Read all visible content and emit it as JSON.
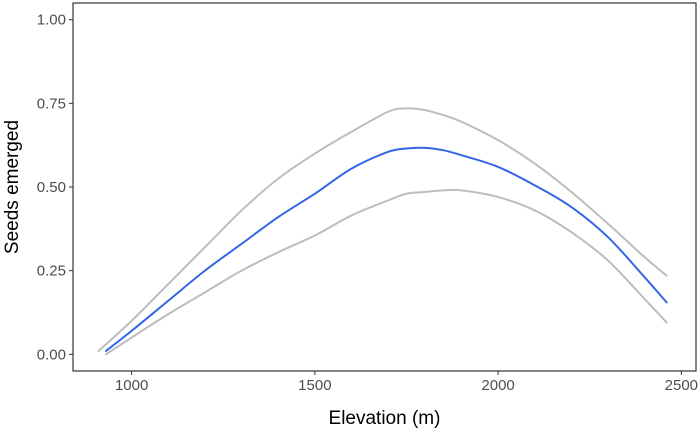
{
  "chart_data": {
    "type": "line",
    "xlabel": "Elevation (m)",
    "ylabel": "Seeds emerged",
    "xlim": [
      840,
      2540
    ],
    "ylim": [
      -0.05,
      1.05
    ],
    "x_ticks": [
      1000,
      1500,
      2000,
      2500
    ],
    "x_tick_labels": [
      "1000",
      "1500",
      "2000",
      "2500"
    ],
    "y_ticks": [
      0.0,
      0.25,
      0.5,
      0.75,
      1.0
    ],
    "y_tick_labels": [
      "0.00",
      "0.25",
      "0.50",
      "0.75",
      "1.00"
    ],
    "grid": false,
    "colors": {
      "fit": "#3366e6",
      "band": "#bdbdbd",
      "frame": "#333333"
    },
    "series": [
      {
        "role": "fit",
        "x": [
          930,
          1000,
          1100,
          1200,
          1300,
          1400,
          1500,
          1600,
          1700,
          1750,
          1800,
          1850,
          1900,
          2000,
          2100,
          2200,
          2300,
          2400,
          2460
        ],
        "values": [
          0.01,
          0.07,
          0.16,
          0.25,
          0.33,
          0.41,
          0.48,
          0.555,
          0.605,
          0.615,
          0.617,
          0.61,
          0.595,
          0.56,
          0.505,
          0.44,
          0.35,
          0.23,
          0.155
        ]
      },
      {
        "role": "upper",
        "x": [
          910,
          1000,
          1100,
          1200,
          1300,
          1400,
          1500,
          1600,
          1700,
          1750,
          1800,
          1850,
          1900,
          2000,
          2100,
          2200,
          2300,
          2400,
          2460
        ],
        "values": [
          0.01,
          0.1,
          0.21,
          0.32,
          0.43,
          0.525,
          0.6,
          0.665,
          0.725,
          0.735,
          0.73,
          0.715,
          0.695,
          0.64,
          0.57,
          0.485,
          0.39,
          0.29,
          0.235
        ]
      },
      {
        "role": "lower",
        "x": [
          930,
          1000,
          1100,
          1200,
          1300,
          1400,
          1500,
          1600,
          1700,
          1750,
          1800,
          1850,
          1900,
          2000,
          2100,
          2200,
          2300,
          2400,
          2460
        ],
        "values": [
          0.0,
          0.05,
          0.12,
          0.185,
          0.25,
          0.305,
          0.355,
          0.415,
          0.46,
          0.48,
          0.485,
          0.49,
          0.49,
          0.47,
          0.43,
          0.365,
          0.28,
          0.165,
          0.095
        ]
      }
    ]
  }
}
